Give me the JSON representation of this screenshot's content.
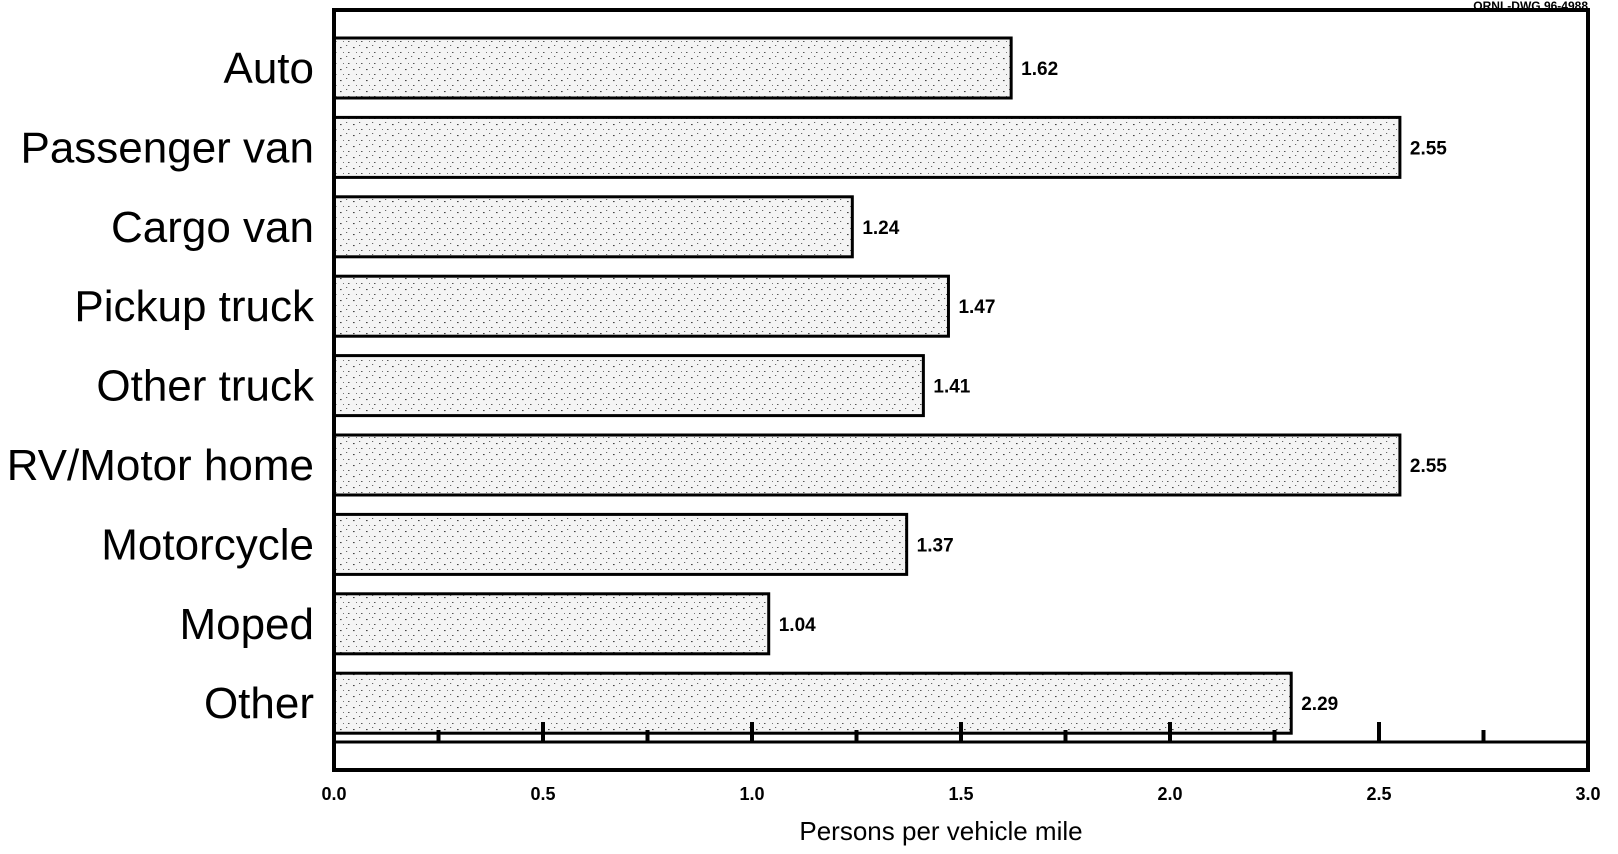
{
  "drawing_code": "ORNL-DWG 96-4988",
  "chart_data": {
    "type": "bar",
    "orientation": "horizontal",
    "categories": [
      "Auto",
      "Passenger van",
      "Cargo van",
      "Pickup truck",
      "Other truck",
      "RV/Motor home",
      "Motorcycle",
      "Moped",
      "Other"
    ],
    "values": [
      1.62,
      2.55,
      1.24,
      1.47,
      1.41,
      2.55,
      1.37,
      1.04,
      2.29
    ],
    "value_labels": [
      "1.62",
      "2.55",
      "1.24",
      "1.47",
      "1.41",
      "2.55",
      "1.37",
      "1.04",
      "2.29"
    ],
    "xlabel": "Persons per vehicle mile",
    "ylabel": "",
    "xlim": [
      0,
      3.0
    ],
    "xticks": [
      "0.0",
      "0.5",
      "1.0",
      "1.5",
      "2.0",
      "2.5",
      "3.0"
    ],
    "minor_tick_step": 0.25,
    "grid": false,
    "bar_fill": "#f2f2f2",
    "bar_stroke": "#000000",
    "bar_texture": "stippled"
  }
}
